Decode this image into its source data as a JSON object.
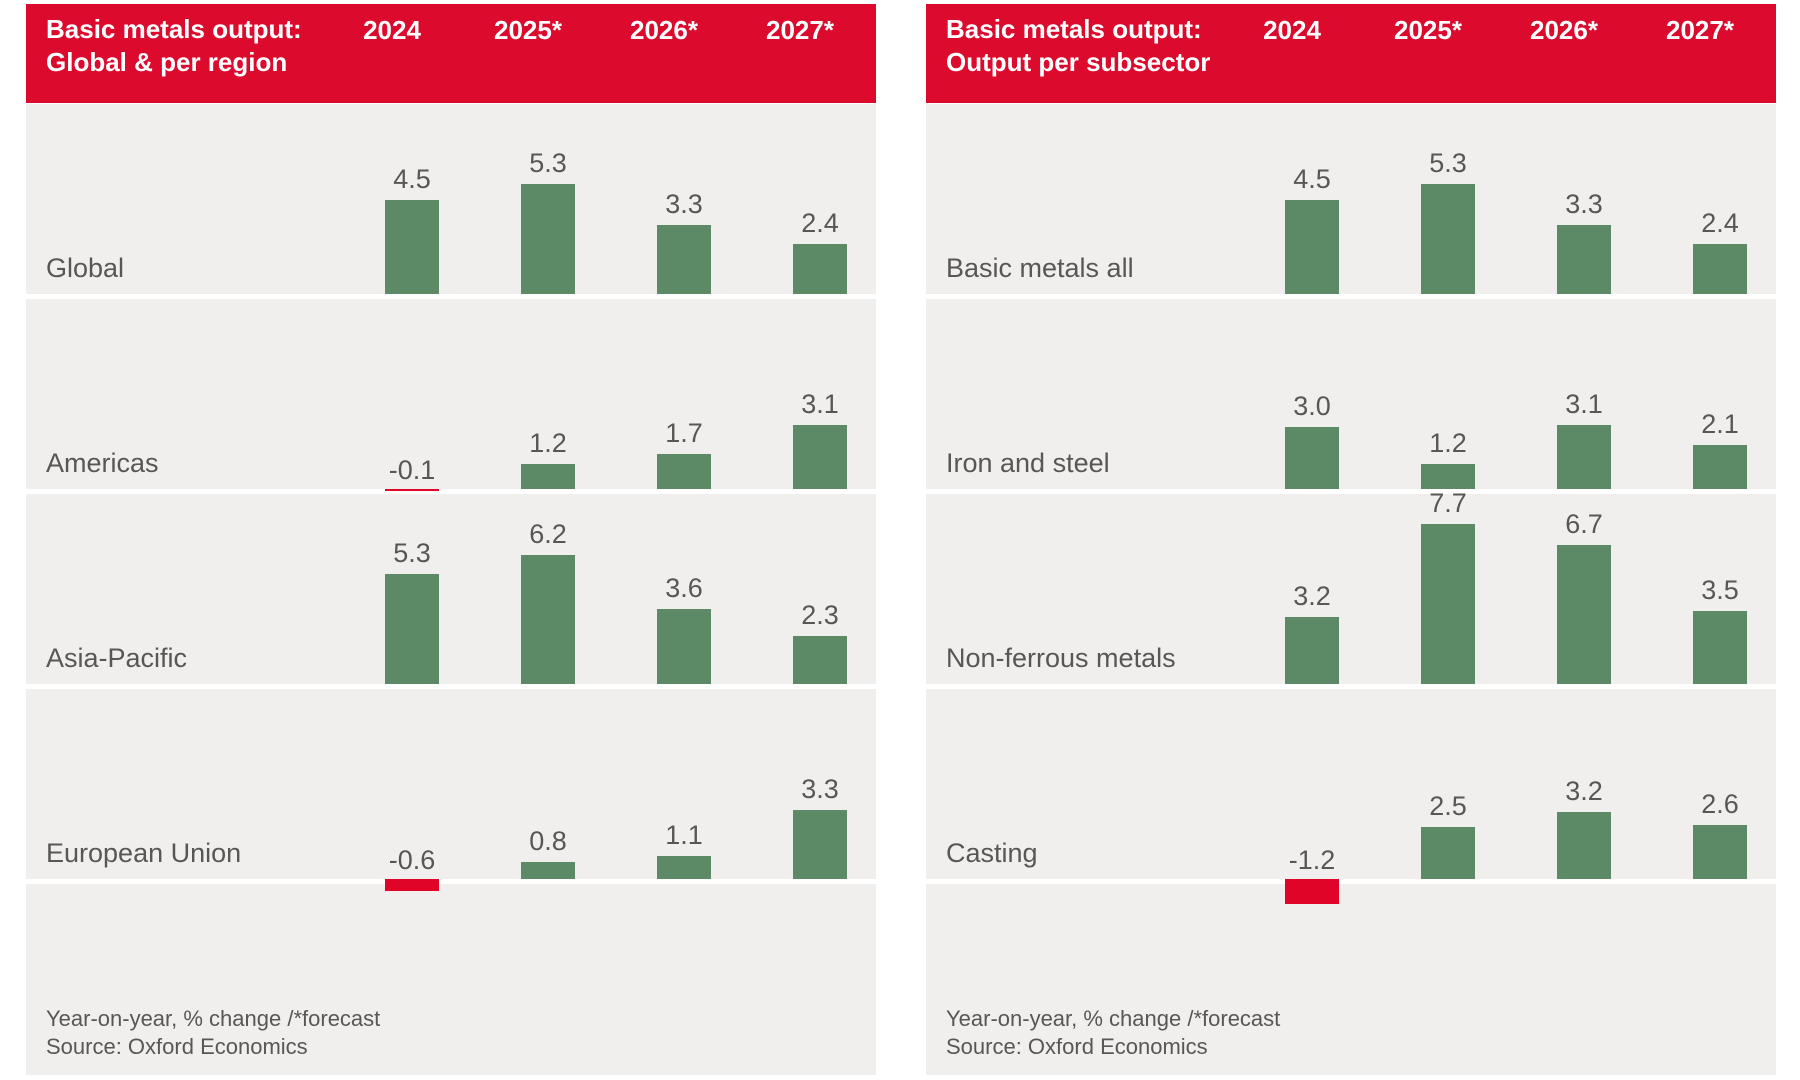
{
  "colors": {
    "header_bg": "#dc0a2d",
    "bar_positive": "#5d8a66",
    "bar_negative": "#e00428",
    "band_bg": "#f0efed",
    "label_text": "#575756",
    "header_text": "#ffffff"
  },
  "years": [
    "2024",
    "2025*",
    "2026*",
    "2027*"
  ],
  "footnote": {
    "line1": "Year-on-year, % change /*forecast",
    "line2": "Source: Oxford Economics"
  },
  "chart_data": [
    {
      "type": "bar",
      "title_line1": "Basic metals output:",
      "title_line2": "Global & per region",
      "categories": [
        "2024",
        "2025*",
        "2026*",
        "2027*"
      ],
      "series": [
        {
          "name": "Global",
          "values": [
            4.5,
            5.3,
            3.3,
            2.4
          ],
          "labels": [
            "4.5",
            "5.3",
            "3.3",
            "2.4"
          ]
        },
        {
          "name": "Americas",
          "values": [
            -0.1,
            1.2,
            1.7,
            3.1
          ],
          "labels": [
            "-0.1",
            "1.2",
            "1.7",
            "3.1"
          ]
        },
        {
          "name": "Asia-Pacific",
          "values": [
            5.3,
            6.2,
            3.6,
            2.3
          ],
          "labels": [
            "5.3",
            "6.2",
            "3.6",
            "2.3"
          ]
        },
        {
          "name": "European Union",
          "values": [
            -0.6,
            0.8,
            1.1,
            3.3
          ],
          "labels": [
            "-0.6",
            "0.8",
            "1.1",
            "3.3"
          ]
        }
      ],
      "unit": "Year-on-year, % change",
      "note": "* forecast",
      "source": "Oxford Economics",
      "legend_position": "none",
      "grid": false
    },
    {
      "type": "bar",
      "title_line1": "Basic metals output:",
      "title_line2": "Output per subsector",
      "categories": [
        "2024",
        "2025*",
        "2026*",
        "2027*"
      ],
      "series": [
        {
          "name": "Basic metals all",
          "values": [
            4.5,
            5.3,
            3.3,
            2.4
          ],
          "labels": [
            "4.5",
            "5.3",
            "3.3",
            "2.4"
          ]
        },
        {
          "name": "Iron and steel",
          "values": [
            3.0,
            1.2,
            3.1,
            2.1
          ],
          "labels": [
            "3.0",
            "1.2",
            "3.1",
            "2.1"
          ]
        },
        {
          "name": "Non-ferrous metals",
          "values": [
            3.2,
            7.7,
            6.7,
            3.5
          ],
          "labels": [
            "3.2",
            "7.7",
            "6.7",
            "3.5"
          ]
        },
        {
          "name": "Casting",
          "values": [
            -1.2,
            2.5,
            3.2,
            2.6
          ],
          "labels": [
            "-1.2",
            "2.5",
            "3.2",
            "2.6"
          ]
        }
      ],
      "unit": "Year-on-year, % change",
      "note": "* forecast",
      "source": "Oxford Economics",
      "legend_position": "none",
      "grid": false
    }
  ]
}
